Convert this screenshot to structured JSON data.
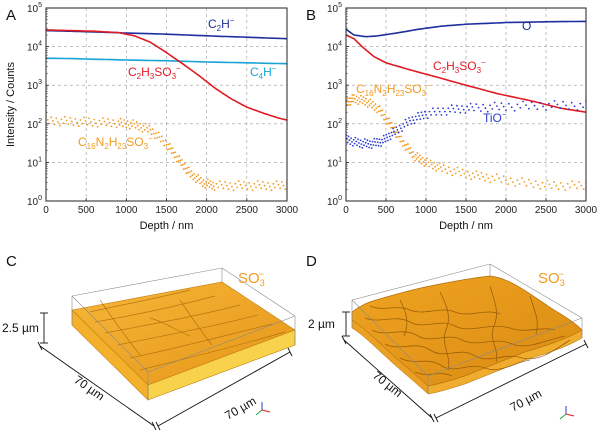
{
  "chart_data": [
    {
      "panel": "A",
      "type": "line",
      "xlabel": "Depth / nm",
      "ylabel": "Intensity / Counts",
      "xlim": [
        0,
        3000
      ],
      "ylim": [
        1,
        100000
      ],
      "yscale": "log",
      "grid": true,
      "xticks": [
        "0",
        "500",
        "1000",
        "1500",
        "2000",
        "2500",
        "3000"
      ],
      "yticks": [
        "10^0",
        "10^1",
        "10^2",
        "10^3",
        "10^4",
        "10^5"
      ],
      "series": [
        {
          "name": "C2H−",
          "label_main": "C",
          "label_sub": "2",
          "label_main2": "H",
          "label_sup": "−",
          "color": "#1e2f9e",
          "style": "line",
          "x": [
            0,
            300,
            600,
            1000,
            1500,
            2000,
            2500,
            3000
          ],
          "y": [
            26000,
            25000,
            24000,
            22500,
            21000,
            19000,
            17500,
            16000
          ]
        },
        {
          "name": "C4H−",
          "label_main": "C",
          "label_sub": "4",
          "label_main2": "H",
          "label_sup": "−",
          "color": "#1aa3d6",
          "style": "line",
          "x": [
            0,
            300,
            600,
            1000,
            1500,
            2000,
            2500,
            3000
          ],
          "y": [
            5000,
            4900,
            4700,
            4500,
            4300,
            4000,
            3800,
            3600
          ]
        },
        {
          "name": "C2H3SO3−",
          "label_main": "C",
          "label_sub": "2",
          "label_main2": "H",
          "label_sub2": "3",
          "label_main3": "SO",
          "label_sub3": "3",
          "label_sup": "−",
          "color": "#e01b24",
          "style": "line",
          "x": [
            0,
            300,
            600,
            900,
            1100,
            1300,
            1500,
            1700,
            1900,
            2100,
            2300,
            2500,
            2700,
            2900,
            3000
          ],
          "y": [
            27000,
            26000,
            25000,
            23000,
            19000,
            13000,
            7000,
            3600,
            1800,
            850,
            450,
            270,
            190,
            140,
            125
          ]
        },
        {
          "name": "C16N2H23SO3−",
          "label_main": "C",
          "label_sub": "16",
          "label_main2": "N",
          "label_sub2": "2",
          "label_main3": "H",
          "label_sub3": "23",
          "label_main4": "SO",
          "label_sub4": "3",
          "label_sup": "−",
          "color": "#f29a1e",
          "style": "scatter",
          "x": [
            0,
            300,
            600,
            900,
            1100,
            1300,
            1500,
            1650,
            1800,
            1950,
            2100,
            2400,
            2700,
            3000
          ],
          "y": [
            120,
            115,
            110,
            105,
            95,
            70,
            30,
            12,
            5,
            3,
            2.5,
            2.5,
            2.5,
            2.5
          ]
        }
      ]
    },
    {
      "panel": "B",
      "type": "line",
      "xlabel": "Depth / nm",
      "ylabel": "",
      "xlim": [
        0,
        3000
      ],
      "ylim": [
        1,
        100000
      ],
      "yscale": "log",
      "grid": true,
      "xticks": [
        "0",
        "500",
        "1000",
        "1500",
        "2000",
        "2500",
        "3000"
      ],
      "yticks": [
        "10^0",
        "10^1",
        "10^2",
        "10^3",
        "10^4",
        "10^5"
      ],
      "series": [
        {
          "name": "O−",
          "label_main": "O",
          "label_sup": "−",
          "color": "#1e2f9e",
          "style": "line",
          "x": [
            0,
            100,
            250,
            400,
            600,
            900,
            1200,
            1500,
            2000,
            2500,
            3000
          ],
          "y": [
            28000,
            20000,
            18000,
            19000,
            22000,
            28000,
            34000,
            38000,
            42000,
            44000,
            45000
          ]
        },
        {
          "name": "C2H3SO3−",
          "label_main": "C",
          "label_sub": "2",
          "label_main2": "H",
          "label_sub2": "3",
          "label_main3": "SO",
          "label_sub3": "3",
          "label_sup": "−",
          "color": "#e01b24",
          "style": "line",
          "x": [
            0,
            100,
            200,
            350,
            500,
            800,
            1100,
            1500,
            1900,
            2300,
            2700,
            3000
          ],
          "y": [
            20000,
            16000,
            10000,
            5500,
            3800,
            2500,
            1700,
            1000,
            600,
            400,
            250,
            200
          ]
        },
        {
          "name": "C16N2H23SO3−",
          "label_main": "C",
          "label_sub": "16",
          "label_main2": "N",
          "label_sub2": "2",
          "label_main3": "H",
          "label_sub3": "23",
          "label_main4": "SO",
          "label_sub4": "3",
          "label_sup": "−",
          "color": "#f29a1e",
          "style": "scatter",
          "x": [
            0,
            100,
            250,
            400,
            550,
            700,
            850,
            1000,
            1200,
            1500,
            1800,
            2200,
            2600,
            3000
          ],
          "y": [
            350,
            450,
            380,
            250,
            100,
            35,
            15,
            10,
            7,
            5,
            4,
            3,
            2.5,
            2.5
          ]
        },
        {
          "name": "TiO−",
          "label_main": "TiO",
          "label_sup": "−",
          "color": "#2a3bd1",
          "style": "scatter",
          "x": [
            0,
            150,
            300,
            450,
            600,
            800,
            1000,
            1300,
            1600,
            2000,
            2500,
            3000
          ],
          "y": [
            40,
            32,
            30,
            35,
            60,
            120,
            180,
            230,
            260,
            280,
            300,
            300
          ]
        }
      ]
    }
  ],
  "panels": {
    "A": {
      "letter": "A"
    },
    "B": {
      "letter": "B"
    },
    "C": {
      "letter": "C",
      "ion": "SO",
      "ion_sub": "3",
      "ion_sup": "−",
      "z_label": "2.5 µm",
      "x_label": "70 µm",
      "y_label": "70 µm"
    },
    "D": {
      "letter": "D",
      "ion": "SO",
      "ion_sub": "3",
      "ion_sup": "−",
      "z_label": "2 µm",
      "x_label": "70 µm",
      "y_label": "70 µm"
    }
  },
  "colors": {
    "surface": "#f2a524",
    "surface_dark": "#b8700c",
    "surface_light": "#f9c85a",
    "grid": "#9a9a9a"
  }
}
